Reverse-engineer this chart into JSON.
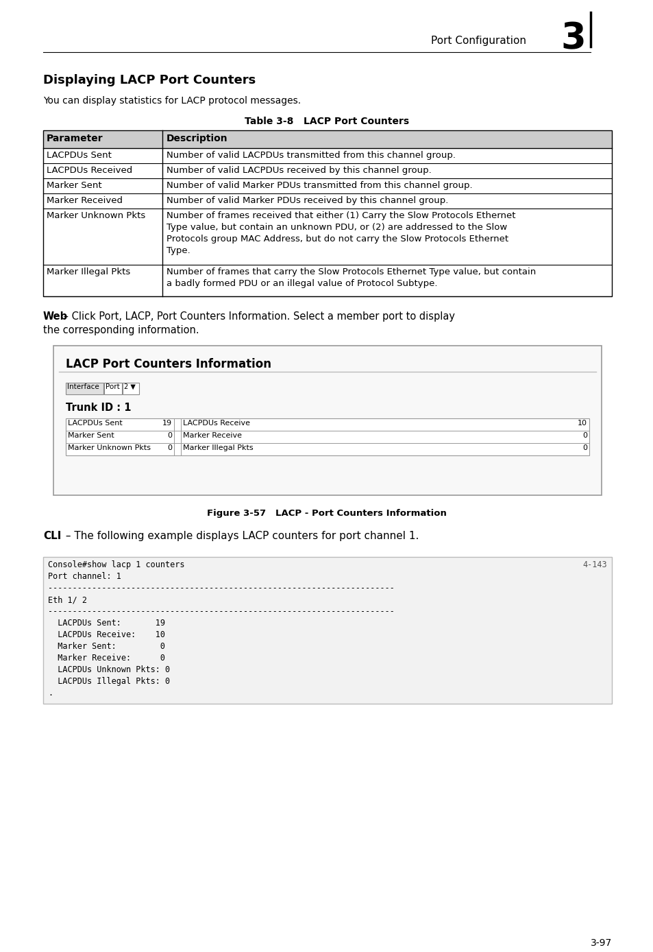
{
  "page_bg": "#ffffff",
  "header_text": "Port Configuration",
  "header_number": "3",
  "section_title": "Displaying LACP Port Counters",
  "section_subtitle": "You can display statistics for LACP protocol messages.",
  "table_title": "Table 3-8   LACP Port Counters",
  "table_headers": [
    "Parameter",
    "Description"
  ],
  "table_rows": [
    [
      "LACPDUs Sent",
      "Number of valid LACPDUs transmitted from this channel group."
    ],
    [
      "LACPDUs Received",
      "Number of valid LACPDUs received by this channel group."
    ],
    [
      "Marker Sent",
      "Number of valid Marker PDUs transmitted from this channel group."
    ],
    [
      "Marker Received",
      "Number of valid Marker PDUs received by this channel group."
    ],
    [
      "Marker Unknown Pkts",
      "Number of frames received that either (1) Carry the Slow Protocols Ethernet\nType value, but contain an unknown PDU, or (2) are addressed to the Slow\nProtocols group MAC Address, but do not carry the Slow Protocols Ethernet\nType."
    ],
    [
      "Marker Illegal Pkts",
      "Number of frames that carry the Slow Protocols Ethernet Type value, but contain\na badly formed PDU or an illegal value of Protocol Subtype."
    ]
  ],
  "web_text_bold": "Web",
  "web_text_line1": " – Click Port, LACP, Port Counters Information. Select a member port to display",
  "web_text_line2": "the corresponding information.",
  "figure_title": "LACP Port Counters Information",
  "figure_trunk": "Trunk ID : 1",
  "figure_inner_rows": [
    [
      "LACPDUs Sent",
      "19",
      "LACPDUs Receive",
      "10"
    ],
    [
      "Marker Sent",
      "0",
      "Marker Receive",
      "0"
    ],
    [
      "Marker Unknown Pkts",
      "0",
      "Marker Illegal Pkts",
      "0"
    ]
  ],
  "figure_caption": "Figure 3-57   LACP - Port Counters Information",
  "cli_text_bold": "CLI",
  "cli_text_rest": " – The following example displays LACP counters for port channel 1.",
  "cli_code_left": "Console#show lacp 1 counters",
  "cli_code_right": "4-143",
  "cli_code_body": "Port channel: 1\n-----------------------------------------------------------------------\nEth 1/ 2\n-----------------------------------------------------------------------\n  LACPDUs Sent:       19\n  LACPDUs Receive:    10\n  Marker Sent:         0\n  Marker Receive:      0\n  LACPDUs Unknown Pkts: 0\n  LACPDUs Illegal Pkts: 0\n.",
  "page_number": "3-97"
}
